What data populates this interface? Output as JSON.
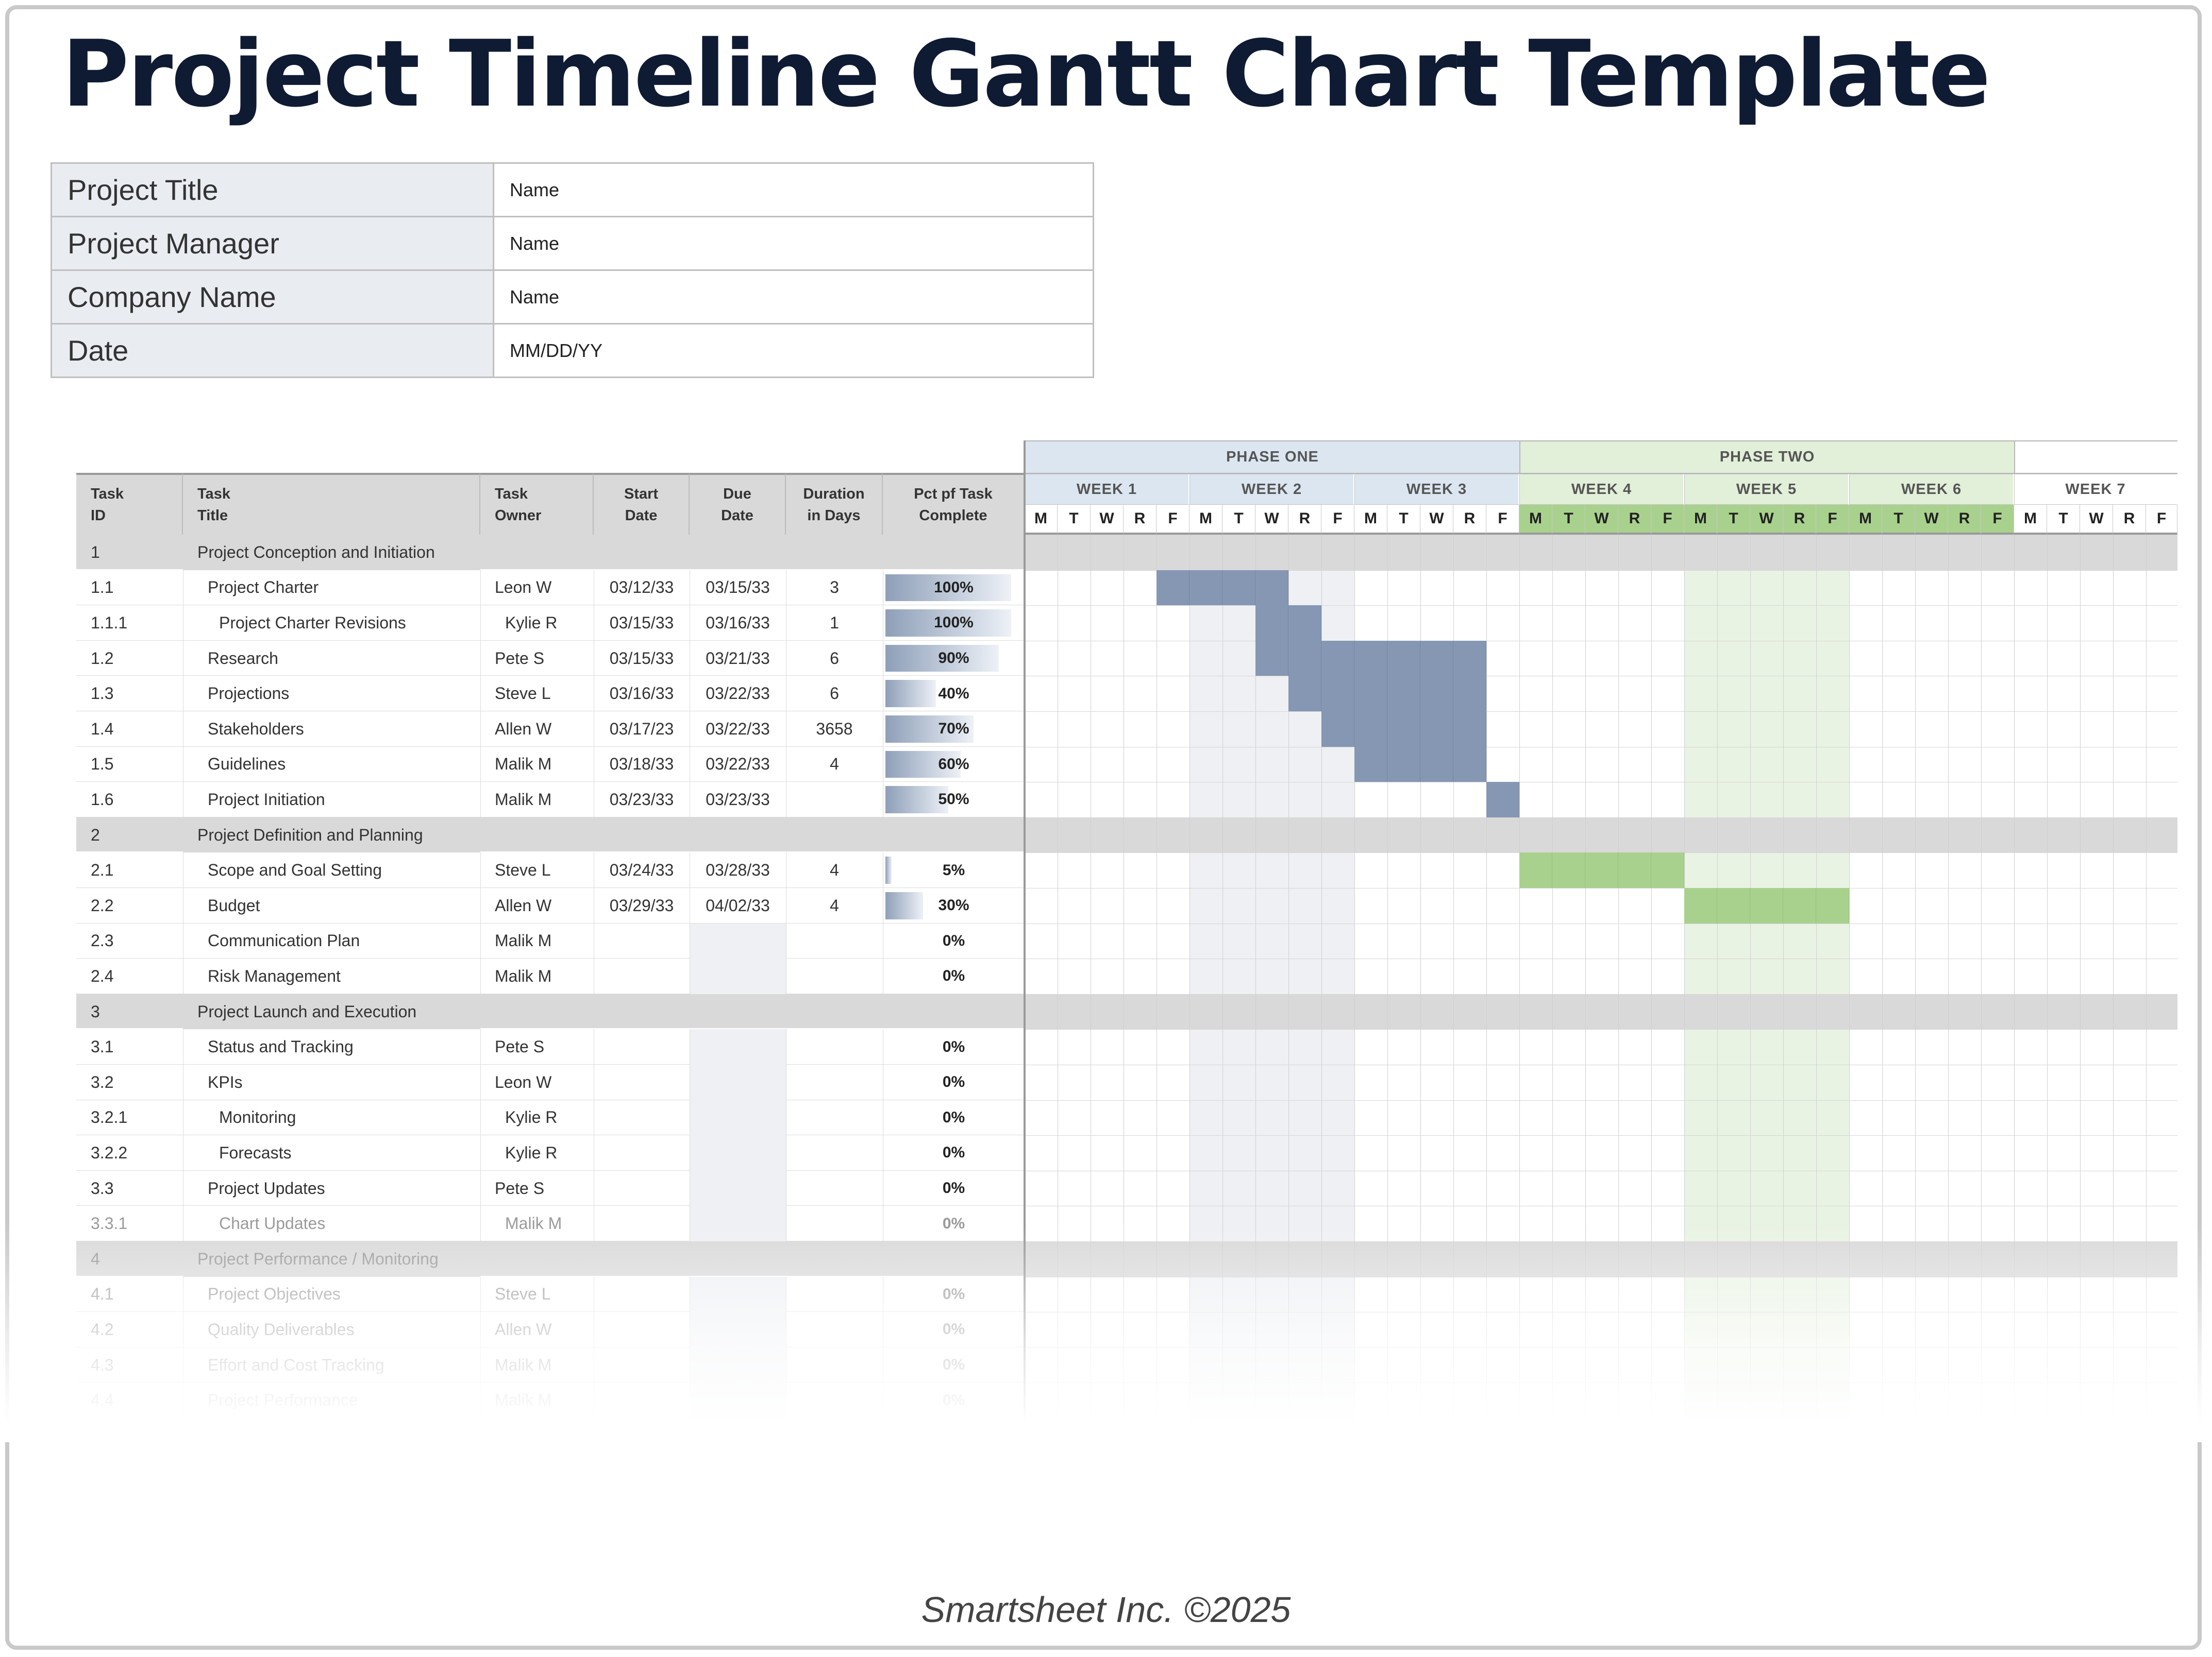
{
  "title": "Project Timeline Gantt Chart Template",
  "info": [
    {
      "label": "Project Title",
      "value": "Name"
    },
    {
      "label": "Project Manager",
      "value": "Name"
    },
    {
      "label": "Company Name",
      "value": "Name"
    },
    {
      "label": "Date",
      "value": "MM/DD/YY"
    }
  ],
  "columns": [
    "Task\nID",
    "Task\nTitle",
    "Task\nOwner",
    "Start\nDate",
    "Due\nDate",
    "Duration\nin Days",
    "Pct pf Task\nComplete"
  ],
  "phases": [
    {
      "name": "PHASE ONE",
      "weeks": 3
    },
    {
      "name": "PHASE TWO",
      "weeks": 3
    },
    {
      "name": "",
      "weeks": 1
    }
  ],
  "weeks": [
    "WEEK 1",
    "WEEK 2",
    "WEEK 3",
    "WEEK 4",
    "WEEK 5",
    "WEEK 6",
    "WEEK 7"
  ],
  "days": [
    "M",
    "T",
    "W",
    "R",
    "F"
  ],
  "colors": {
    "phase_one_header": "#dbe6f1",
    "phase_two_header": "#e2efd9",
    "phase_two_days": "#a9d18e",
    "bar_phase_one": "#8597b3",
    "bar_phase_two": "#a9d18e",
    "section_row": "#d9d9d9",
    "column_header": "#d9d9d9",
    "shade_week2": "#eef0f4",
    "shade_week5": "#e9f3e3"
  },
  "rows": [
    {
      "id": "1",
      "title": "Project Conception and Initiation",
      "section": true
    },
    {
      "id": "1.1",
      "title": "Project Charter",
      "indent": 1,
      "owner": "Leon W",
      "start": "03/12/33",
      "due": "03/15/33",
      "duration": "3",
      "pct": "100%",
      "pct_value": 1.0,
      "bar": {
        "from": 4,
        "to": 8,
        "color": "bar_phase_one"
      }
    },
    {
      "id": "1.1.1",
      "title": "Project Charter Revisions",
      "indent": 2,
      "owner": "Kylie R",
      "start": "03/15/33",
      "due": "03/16/33",
      "duration": "1",
      "pct": "100%",
      "pct_value": 1.0,
      "bar": {
        "from": 7,
        "to": 9,
        "color": "bar_phase_one"
      }
    },
    {
      "id": "1.2",
      "title": "Research",
      "indent": 1,
      "owner": "Pete S",
      "start": "03/15/33",
      "due": "03/21/33",
      "duration": "6",
      "pct": "90%",
      "pct_value": 0.9,
      "bar": {
        "from": 7,
        "to": 14,
        "color": "bar_phase_one"
      }
    },
    {
      "id": "1.3",
      "title": "Projections",
      "indent": 1,
      "owner": "Steve L",
      "start": "03/16/33",
      "due": "03/22/33",
      "duration": "6",
      "pct": "40%",
      "pct_value": 0.4,
      "bar": {
        "from": 8,
        "to": 14,
        "color": "bar_phase_one"
      }
    },
    {
      "id": "1.4",
      "title": "Stakeholders",
      "indent": 1,
      "owner": "Allen W",
      "start": "03/17/23",
      "due": "03/22/33",
      "duration": "3658",
      "pct": "70%",
      "pct_value": 0.7,
      "bar": {
        "from": 9,
        "to": 14,
        "color": "bar_phase_one"
      }
    },
    {
      "id": "1.5",
      "title": "Guidelines",
      "indent": 1,
      "owner": "Malik M",
      "start": "03/18/33",
      "due": "03/22/33",
      "duration": "4",
      "pct": "60%",
      "pct_value": 0.6,
      "bar": {
        "from": 10,
        "to": 14,
        "color": "bar_phase_one"
      }
    },
    {
      "id": "1.6",
      "title": "Project Initiation",
      "indent": 1,
      "owner": "Malik M",
      "start": "03/23/33",
      "due": "03/23/33",
      "duration": "",
      "pct": "50%",
      "pct_value": 0.5,
      "bar": {
        "from": 14,
        "to": 15,
        "color": "bar_phase_one"
      }
    },
    {
      "id": "2",
      "title": "Project Definition and Planning",
      "section": true
    },
    {
      "id": "2.1",
      "title": "Scope and Goal Setting",
      "indent": 1,
      "owner": "Steve L",
      "start": "03/24/33",
      "due": "03/28/33",
      "duration": "4",
      "pct": "5%",
      "pct_value": 0.05,
      "bar": {
        "from": 15,
        "to": 20,
        "color": "bar_phase_two"
      }
    },
    {
      "id": "2.2",
      "title": "Budget",
      "indent": 1,
      "owner": "Allen W",
      "start": "03/29/33",
      "due": "04/02/33",
      "duration": "4",
      "pct": "30%",
      "pct_value": 0.3,
      "bar": {
        "from": 20,
        "to": 25,
        "color": "bar_phase_two"
      }
    },
    {
      "id": "2.3",
      "title": "Communication Plan",
      "indent": 1,
      "owner": "Malik M",
      "start": "",
      "due": "",
      "duration": "",
      "pct": "0%",
      "pct_value": 0
    },
    {
      "id": "2.4",
      "title": "Risk Management",
      "indent": 1,
      "owner": "Malik M",
      "start": "",
      "due": "",
      "duration": "",
      "pct": "0%",
      "pct_value": 0
    },
    {
      "id": "3",
      "title": "Project Launch and Execution",
      "section": true
    },
    {
      "id": "3.1",
      "title": "Status and Tracking",
      "indent": 1,
      "owner": "Pete S",
      "start": "",
      "due": "",
      "duration": "",
      "pct": "0%",
      "pct_value": 0
    },
    {
      "id": "3.2",
      "title": "KPIs",
      "indent": 1,
      "owner": "Leon W",
      "start": "",
      "due": "",
      "duration": "",
      "pct": "0%",
      "pct_value": 0
    },
    {
      "id": "3.2.1",
      "title": "Monitoring",
      "indent": 2,
      "owner": "Kylie R",
      "start": "",
      "due": "",
      "duration": "",
      "pct": "0%",
      "pct_value": 0
    },
    {
      "id": "3.2.2",
      "title": "Forecasts",
      "indent": 2,
      "owner": "Kylie R",
      "start": "",
      "due": "",
      "duration": "",
      "pct": "0%",
      "pct_value": 0
    },
    {
      "id": "3.3",
      "title": "Project Updates",
      "indent": 1,
      "owner": "Pete S",
      "start": "",
      "due": "",
      "duration": "",
      "pct": "0%",
      "pct_value": 0
    },
    {
      "id": "3.3.1",
      "title": "Chart Updates",
      "indent": 2,
      "owner": "Malik M",
      "start": "",
      "due": "",
      "duration": "",
      "pct": "0%",
      "pct_value": 0
    },
    {
      "id": "4",
      "title": "Project Performance / Monitoring",
      "section": true
    },
    {
      "id": "4.1",
      "title": "Project Objectives",
      "indent": 1,
      "owner": "Steve L",
      "start": "",
      "due": "",
      "duration": "",
      "pct": "0%",
      "pct_value": 0
    },
    {
      "id": "4.2",
      "title": "Quality Deliverables",
      "indent": 1,
      "owner": "Allen W",
      "start": "",
      "due": "",
      "duration": "",
      "pct": "0%",
      "pct_value": 0
    },
    {
      "id": "4.3",
      "title": "Effort and Cost Tracking",
      "indent": 1,
      "owner": "Malik M",
      "start": "",
      "due": "",
      "duration": "",
      "pct": "0%",
      "pct_value": 0
    },
    {
      "id": "4.4",
      "title": "Project Performance",
      "indent": 1,
      "owner": "Malik M",
      "start": "",
      "due": "",
      "duration": "",
      "pct": "0%",
      "pct_value": 0
    }
  ],
  "footer": "Smartsheet Inc. ©2025"
}
